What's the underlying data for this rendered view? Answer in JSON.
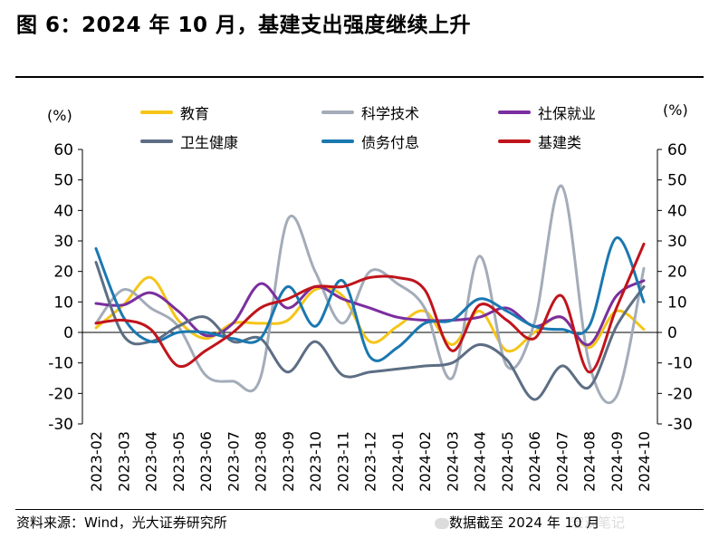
{
  "header": {
    "title": "图 6：2024 年 10 月，基建支出强度继续上升"
  },
  "footer": {
    "source": "资料来源：Wind，光大证券研究所",
    "date_note": "数据截至 2024 年 10 月",
    "watermark": "宏观笔记"
  },
  "chart_data": {
    "type": "line",
    "title": "图 6：2024 年 10 月，基建支出强度继续上升",
    "left_unit": "(%)",
    "right_unit": "(%)",
    "ylim": [
      -30,
      60
    ],
    "yticks": [
      60,
      50,
      40,
      30,
      20,
      10,
      0,
      -10,
      -20,
      -30
    ],
    "categories": [
      "2023-02",
      "2023-03",
      "2023-04",
      "2023-05",
      "2023-06",
      "2023-07",
      "2023-08",
      "2023-09",
      "2023-10",
      "2023-11",
      "2023-12",
      "2024-01",
      "2024-02",
      "2024-03",
      "2024-04",
      "2024-05",
      "2024-06",
      "2024-07",
      "2024-08",
      "2024-09",
      "2024-10"
    ],
    "series": [
      {
        "name": "教育",
        "color": "#f5c518",
        "values": [
          1.5,
          9,
          18,
          4,
          -2,
          3,
          3,
          4,
          14,
          12,
          -3,
          2,
          7,
          -4,
          7,
          -6,
          0,
          5,
          -5,
          7,
          1
        ]
      },
      {
        "name": "科学技术",
        "color": "#a3acb9",
        "values": [
          3,
          14,
          8,
          2,
          -14,
          -16,
          -15,
          37,
          20,
          3,
          20,
          16,
          8,
          -15,
          25,
          -11,
          3,
          48,
          -10,
          -21,
          21
        ]
      },
      {
        "name": "社保就业",
        "color": "#7b2e9e",
        "values": [
          9.5,
          9,
          13,
          7,
          -1,
          3,
          16,
          8,
          15,
          11,
          8,
          5,
          4,
          4,
          5,
          8,
          2,
          5,
          -4,
          12,
          17
        ]
      },
      {
        "name": "卫生健康",
        "color": "#5d6e84",
        "values": [
          23,
          -1,
          -3,
          2,
          5,
          -3,
          -2,
          -13,
          -3,
          -14,
          -13,
          -12,
          -11,
          -10,
          -4,
          -9,
          -22,
          -11,
          -18,
          2,
          15
        ]
      },
      {
        "name": "债务付息",
        "color": "#1a78b0",
        "values": [
          27.5,
          5,
          -3,
          0,
          0,
          -2,
          -2,
          15,
          2,
          17,
          -8,
          -5,
          3,
          4,
          11,
          7,
          2,
          1,
          2,
          31,
          10
        ]
      },
      {
        "name": "基建类",
        "color": "#c0141c",
        "values": [
          3,
          4,
          1,
          -11,
          -6,
          0,
          8,
          11,
          15,
          15,
          18,
          18,
          14,
          -6,
          9,
          4,
          -2,
          12,
          -13,
          8,
          29
        ]
      }
    ]
  }
}
